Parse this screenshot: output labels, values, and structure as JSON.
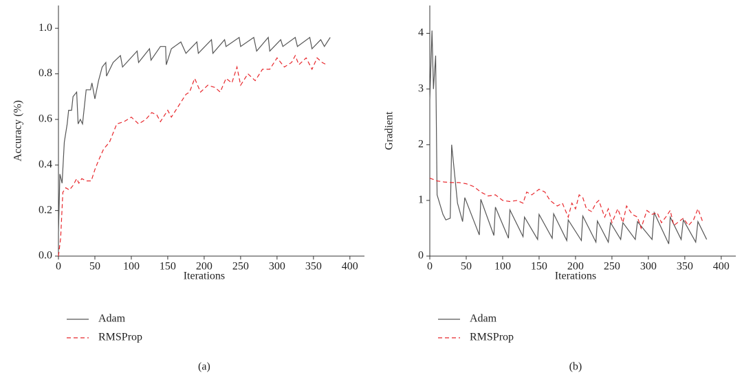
{
  "chart_data": [
    {
      "type": "line",
      "label": "(a)",
      "xlabel": "Iterations",
      "ylabel": "Accuracy (%)",
      "xlim": [
        0,
        420
      ],
      "xticks": [
        0,
        50,
        100,
        150,
        200,
        250,
        300,
        350,
        400
      ],
      "ylim": [
        0,
        1.1
      ],
      "yticks": [
        {
          "value": 0,
          "label": "0.0"
        },
        0.2,
        0.4,
        0.6,
        0.8,
        {
          "value": 1,
          "label": "1.0"
        }
      ],
      "series": [
        {
          "name": "Adam",
          "color": "#555555",
          "dash": false,
          "x": [
            0,
            2,
            5,
            8,
            12,
            14,
            18,
            20,
            25,
            27,
            30,
            33,
            38,
            44,
            46,
            50,
            55,
            60,
            65,
            66,
            75,
            85,
            88,
            108,
            110,
            125,
            127,
            140,
            147,
            148,
            155,
            168,
            175,
            190,
            192,
            210,
            212,
            228,
            230,
            248,
            250,
            268,
            272,
            288,
            290,
            305,
            308,
            325,
            328,
            345,
            348,
            360,
            365,
            373
          ],
          "values": [
            0.1,
            0.36,
            0.32,
            0.5,
            0.58,
            0.64,
            0.64,
            0.7,
            0.72,
            0.58,
            0.6,
            0.58,
            0.73,
            0.73,
            0.76,
            0.69,
            0.77,
            0.83,
            0.85,
            0.79,
            0.85,
            0.88,
            0.83,
            0.9,
            0.85,
            0.91,
            0.86,
            0.92,
            0.92,
            0.84,
            0.91,
            0.94,
            0.89,
            0.94,
            0.89,
            0.95,
            0.89,
            0.95,
            0.92,
            0.96,
            0.92,
            0.96,
            0.9,
            0.96,
            0.9,
            0.95,
            0.92,
            0.96,
            0.92,
            0.96,
            0.91,
            0.95,
            0.92,
            0.96
          ]
        },
        {
          "name": "RMSProp",
          "color": "#e8262b",
          "dash": true,
          "x": [
            0,
            3,
            6,
            10,
            15,
            20,
            25,
            28,
            32,
            38,
            45,
            50,
            55,
            62,
            70,
            80,
            90,
            100,
            110,
            120,
            128,
            135,
            140,
            150,
            155,
            165,
            175,
            180,
            187,
            195,
            205,
            215,
            222,
            230,
            238,
            245,
            250,
            260,
            270,
            280,
            290,
            300,
            310,
            320,
            325,
            330,
            340,
            348,
            355,
            362,
            368
          ],
          "values": [
            0,
            0.08,
            0.28,
            0.3,
            0.29,
            0.31,
            0.34,
            0.32,
            0.34,
            0.33,
            0.33,
            0.38,
            0.42,
            0.47,
            0.5,
            0.58,
            0.59,
            0.61,
            0.58,
            0.6,
            0.63,
            0.62,
            0.59,
            0.64,
            0.61,
            0.66,
            0.71,
            0.72,
            0.78,
            0.72,
            0.75,
            0.74,
            0.72,
            0.78,
            0.76,
            0.83,
            0.75,
            0.8,
            0.77,
            0.82,
            0.82,
            0.87,
            0.83,
            0.85,
            0.88,
            0.84,
            0.87,
            0.82,
            0.87,
            0.85,
            0.84
          ]
        }
      ]
    },
    {
      "type": "line",
      "label": "(b)",
      "xlabel": "Iterations",
      "ylabel": "Gradient",
      "xlim": [
        0,
        420
      ],
      "xticks": [
        0,
        50,
        100,
        150,
        200,
        250,
        300,
        350,
        400
      ],
      "ylim": [
        0,
        4.5
      ],
      "yticks": [
        0,
        1,
        2,
        3,
        4
      ],
      "series": [
        {
          "name": "Adam",
          "color": "#555555",
          "dash": false,
          "x": [
            0,
            3,
            5,
            8,
            10,
            18,
            22,
            28,
            30,
            38,
            45,
            48,
            68,
            70,
            88,
            90,
            108,
            110,
            128,
            130,
            148,
            150,
            168,
            170,
            188,
            190,
            208,
            210,
            228,
            230,
            245,
            248,
            262,
            265,
            282,
            285,
            305,
            308,
            328,
            330,
            345,
            348,
            365,
            368,
            380
          ],
          "values": [
            2.8,
            4.05,
            3.0,
            3.6,
            1.1,
            0.75,
            0.65,
            0.68,
            2.0,
            0.95,
            0.62,
            1.05,
            0.38,
            1.02,
            0.37,
            0.88,
            0.32,
            0.83,
            0.35,
            0.7,
            0.3,
            0.75,
            0.32,
            0.76,
            0.28,
            0.65,
            0.28,
            0.72,
            0.25,
            0.63,
            0.25,
            0.6,
            0.3,
            0.6,
            0.3,
            0.62,
            0.3,
            0.78,
            0.22,
            0.7,
            0.3,
            0.65,
            0.25,
            0.62,
            0.3
          ]
        },
        {
          "name": "RMSProp",
          "color": "#e8262b",
          "dash": true,
          "x": [
            0,
            10,
            20,
            30,
            40,
            50,
            60,
            70,
            80,
            90,
            100,
            110,
            120,
            128,
            133,
            140,
            150,
            158,
            165,
            175,
            182,
            190,
            195,
            200,
            205,
            210,
            215,
            222,
            228,
            232,
            240,
            245,
            250,
            258,
            265,
            270,
            278,
            285,
            290,
            298,
            305,
            312,
            318,
            325,
            330,
            335,
            340,
            348,
            355,
            362,
            368,
            375
          ],
          "values": [
            1.4,
            1.35,
            1.33,
            1.32,
            1.32,
            1.3,
            1.25,
            1.15,
            1.08,
            1.1,
            1.0,
            0.98,
            1.0,
            0.95,
            1.15,
            1.1,
            1.2,
            1.15,
            1.0,
            0.9,
            0.95,
            0.7,
            0.95,
            0.85,
            1.1,
            1.05,
            0.85,
            0.8,
            0.95,
            1.0,
            0.7,
            0.85,
            0.6,
            0.85,
            0.6,
            0.9,
            0.75,
            0.7,
            0.5,
            0.82,
            0.75,
            0.78,
            0.6,
            0.72,
            0.82,
            0.55,
            0.6,
            0.68,
            0.55,
            0.65,
            0.85,
            0.6
          ]
        }
      ]
    }
  ]
}
